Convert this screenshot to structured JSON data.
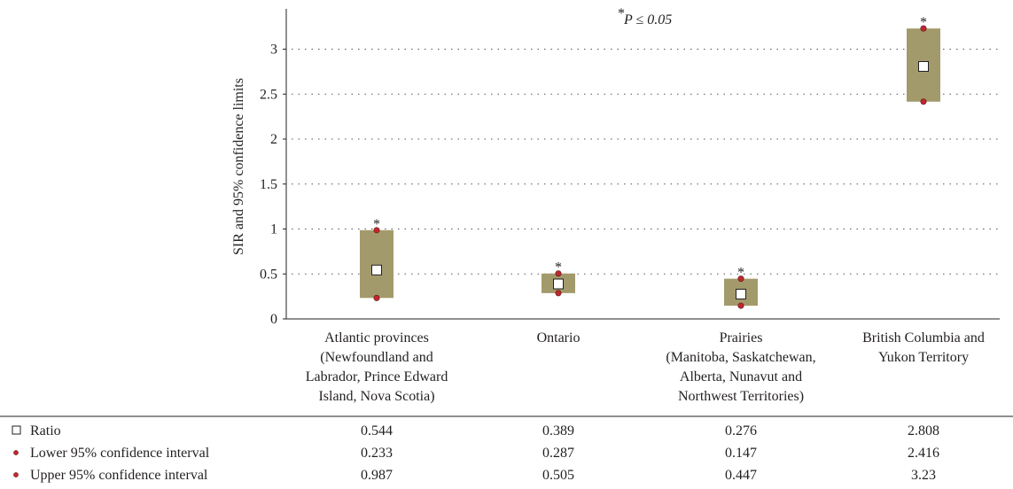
{
  "chart_data": {
    "type": "floating-bar",
    "ylabel": "SIR and 95% confidence limits",
    "ylim": [
      0,
      3.4
    ],
    "yticks": [
      "0",
      "0.5",
      "1",
      "1.5",
      "2",
      "2.5",
      "3"
    ],
    "grid": "horizontal-dotted",
    "annotation": {
      "star": "*",
      "text": "P ≤ 0.05"
    },
    "categories": [
      [
        "Atlantic provinces",
        "(Newfoundland and",
        "Labrador, Prince Edward",
        "Island, Nova Scotia)"
      ],
      [
        "Ontario"
      ],
      [
        "Prairies",
        "(Manitoba, Saskatchewan,",
        "Alberta, Nunavut and",
        "Northwest Territories)"
      ],
      [
        "British Columbia and",
        "Yukon Territory"
      ]
    ],
    "significance_marker": "*",
    "significant": [
      true,
      true,
      true,
      true
    ],
    "series": [
      {
        "name": "Ratio",
        "marker": "square",
        "values": [
          0.544,
          0.389,
          0.276,
          2.808
        ]
      },
      {
        "name": "Lower 95% confidence interval",
        "marker": "dot",
        "values": [
          0.233,
          0.287,
          0.147,
          2.416
        ]
      },
      {
        "name": "Upper 95% confidence interval",
        "marker": "dot",
        "values": [
          0.987,
          0.505,
          0.447,
          3.23
        ]
      }
    ],
    "table_values": [
      [
        "0.544",
        "0.389",
        "0.276",
        "2.808"
      ],
      [
        "0.233",
        "0.287",
        "0.147",
        "2.416"
      ],
      [
        "0.987",
        "0.505",
        "0.447",
        "3.23"
      ]
    ]
  },
  "colors": {
    "bar_fill": "#a39a6b",
    "dot_fill": "#c0272d",
    "dot_stroke": "#5a1a1a",
    "text": "#231f20"
  }
}
